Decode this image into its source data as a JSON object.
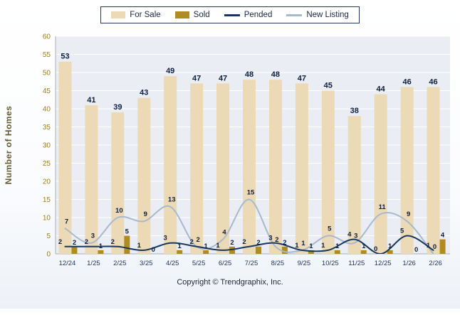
{
  "legend": {
    "items": [
      {
        "label": "For Sale",
        "swatch": "bar",
        "color": "#ecd9b5"
      },
      {
        "label": "Sold",
        "swatch": "bar",
        "color": "#b08b24"
      },
      {
        "label": "Pended",
        "swatch": "line",
        "color": "#17375e"
      },
      {
        "label": "New Listing",
        "swatch": "line",
        "color": "#a9b9cd"
      }
    ]
  },
  "chart_data": {
    "type": "bar+line",
    "categories": [
      "12/24",
      "1/25",
      "2/25",
      "3/25",
      "4/25",
      "5/25",
      "6/25",
      "7/25",
      "8/25",
      "9/25",
      "10/25",
      "11/25",
      "12/25",
      "1/26",
      "2/26"
    ],
    "series": [
      {
        "name": "For Sale",
        "kind": "bar",
        "color": "#ecd9b5",
        "values": [
          53,
          41,
          39,
          43,
          49,
          47,
          47,
          48,
          48,
          47,
          45,
          38,
          44,
          46,
          46
        ]
      },
      {
        "name": "Sold",
        "kind": "bar",
        "color": "#b08b24",
        "values": [
          2,
          1,
          5,
          0,
          1,
          1,
          2,
          2,
          2,
          1,
          1,
          1,
          1,
          0,
          4
        ]
      },
      {
        "name": "Pended",
        "kind": "line",
        "color": "#17375e",
        "values": [
          2,
          2,
          2,
          1,
          3,
          2,
          1,
          2,
          3,
          1,
          1,
          4,
          0,
          5,
          1
        ]
      },
      {
        "name": "New Listing",
        "kind": "line",
        "color": "#a9b9cd",
        "values": [
          7,
          3,
          10,
          9,
          13,
          2,
          4,
          15,
          2,
          1,
          5,
          3,
          11,
          9,
          0
        ]
      }
    ],
    "title": "",
    "xlabel": "",
    "ylabel": "Number of Homes",
    "ylim": [
      0,
      60
    ],
    "ytick_step": 5,
    "grid": true,
    "legend_position": "top-center",
    "colors": {
      "plot_bg": "#eaeef4",
      "grid": "#ffffff",
      "axis": "#a8aeb8",
      "bar_label": "#0f1f3d",
      "ytick": "#9c7f1e",
      "xtick": "#24365e",
      "ylabel": "#665c33"
    }
  },
  "footer": {
    "copyright": "Copyright © Trendgraphix, Inc."
  }
}
